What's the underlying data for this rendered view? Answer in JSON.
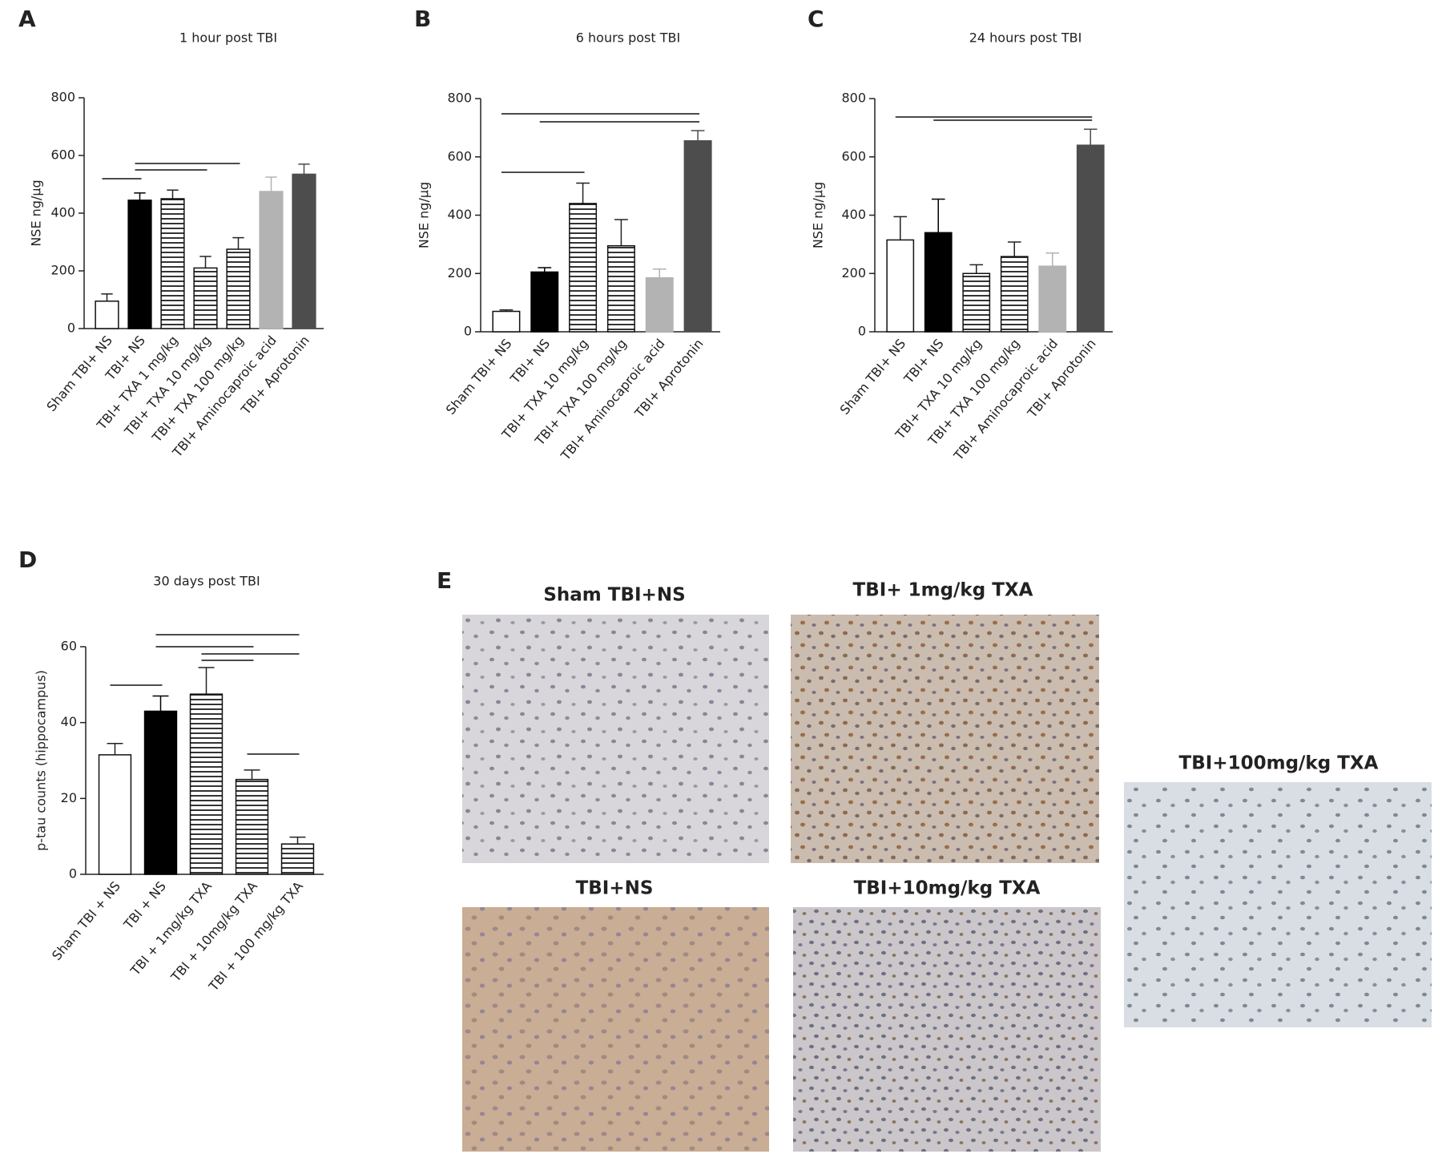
{
  "chart_data": [
    {
      "type": "bar",
      "panel": "A",
      "title": "1 hour post TBI",
      "ylabel": "NSE ng/µg",
      "categories": [
        "Sham TBI+ NS",
        "TBI+ NS",
        "TBI+ TXA 1 mg/kg",
        "TBI+ TXA 10 mg/kg",
        "TBI+ TXA 100 mg/kg",
        "TBI+ Aminocaproic acid",
        "TBI+ Aprotonin"
      ],
      "values": [
        95,
        445,
        450,
        210,
        275,
        475,
        535
      ],
      "errors": [
        25,
        25,
        30,
        40,
        40,
        50,
        35
      ],
      "colors": [
        "#ffffff",
        "#000000",
        "#ffffff",
        "#ffffff",
        "#ffffff",
        "#b3b3b3",
        "#4d4d4d"
      ],
      "hatched": [
        false,
        false,
        true,
        true,
        true,
        false,
        false
      ],
      "ylim": [
        0,
        800
      ],
      "yticks": [
        0,
        200,
        400,
        600,
        800
      ]
    },
    {
      "type": "bar",
      "panel": "B",
      "title": "6 hours post TBI",
      "ylabel": "NSE ng/µg",
      "categories": [
        "Sham TBI+ NS",
        "TBI+ NS",
        "TBI+ TXA 10 mg/kg",
        "TBI+ TXA 100 mg/kg",
        "TBI+ Aminocaproic acid",
        "TBI+ Aprotonin"
      ],
      "values": [
        70,
        205,
        440,
        295,
        185,
        655
      ],
      "errors": [
        5,
        15,
        70,
        90,
        30,
        35
      ],
      "colors": [
        "#ffffff",
        "#000000",
        "#ffffff",
        "#ffffff",
        "#b3b3b3",
        "#4d4d4d"
      ],
      "hatched": [
        false,
        false,
        true,
        true,
        false,
        false
      ],
      "ylim": [
        0,
        800
      ],
      "yticks": [
        0,
        200,
        400,
        600,
        800
      ]
    },
    {
      "type": "bar",
      "panel": "C",
      "title": "24 hours post TBI",
      "ylabel": "NSE ng/µg",
      "categories": [
        "Sham TBI+ NS",
        "TBI+ NS",
        "TBI+ TXA 10 mg/kg",
        "TBI+ TXA 100 mg/kg",
        "TBI+ Aminocaproic acid",
        "TBI+ Aprotonin"
      ],
      "values": [
        315,
        340,
        200,
        258,
        225,
        640
      ],
      "errors": [
        80,
        115,
        30,
        50,
        45,
        55
      ],
      "colors": [
        "#ffffff",
        "#000000",
        "#ffffff",
        "#ffffff",
        "#b3b3b3",
        "#4d4d4d"
      ],
      "hatched": [
        false,
        false,
        true,
        true,
        false,
        false
      ],
      "ylim": [
        0,
        800
      ],
      "yticks": [
        0,
        200,
        400,
        600,
        800
      ]
    },
    {
      "type": "bar",
      "panel": "D",
      "title": "30 days post TBI",
      "ylabel": "p-tau counts (hippocampus)",
      "categories": [
        "Sham TBI + NS",
        "TBI + NS",
        "TBI + 1mg/kg TXA",
        "TBI + 10mg/kg TXA",
        "TBI + 100 mg/kg TXA"
      ],
      "values": [
        31.5,
        43,
        47.5,
        25,
        8
      ],
      "errors": [
        3,
        4,
        7,
        2.5,
        1.8
      ],
      "colors": [
        "#ffffff",
        "#000000",
        "#ffffff",
        "#ffffff",
        "#ffffff"
      ],
      "hatched": [
        false,
        false,
        true,
        true,
        true
      ],
      "ylim": [
        0,
        60
      ],
      "yticks": [
        0,
        20,
        40,
        60
      ]
    }
  ],
  "panel_e": {
    "label": "E",
    "images": [
      {
        "caption": "Sham TBI+NS"
      },
      {
        "caption": "TBI+ 1mg/kg TXA"
      },
      {
        "caption": "TBI+NS"
      },
      {
        "caption": "TBI+10mg/kg TXA"
      },
      {
        "caption": "TBI+100mg/kg TXA"
      }
    ]
  }
}
